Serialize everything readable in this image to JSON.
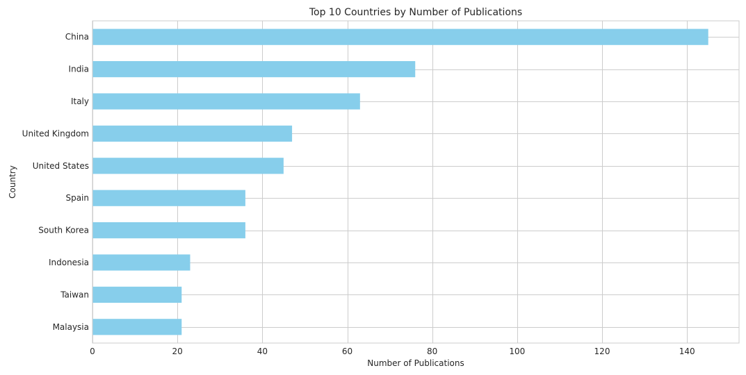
{
  "chart_data": {
    "type": "bar",
    "orientation": "horizontal",
    "title": "Top 10 Countries by Number of Publications",
    "xlabel": "Number of Publications",
    "ylabel": "Country",
    "categories": [
      "China",
      "India",
      "Italy",
      "United Kingdom",
      "United States",
      "Spain",
      "South Korea",
      "Indonesia",
      "Taiwan",
      "Malaysia"
    ],
    "values": [
      145,
      76,
      63,
      47,
      45,
      36,
      36,
      23,
      21,
      21
    ],
    "xlim": [
      0,
      152.25
    ],
    "xticks": [
      0,
      20,
      40,
      60,
      80,
      100,
      120,
      140
    ],
    "grid": true,
    "bar_color": "#87ceeb",
    "grid_color": "#cccccc"
  }
}
